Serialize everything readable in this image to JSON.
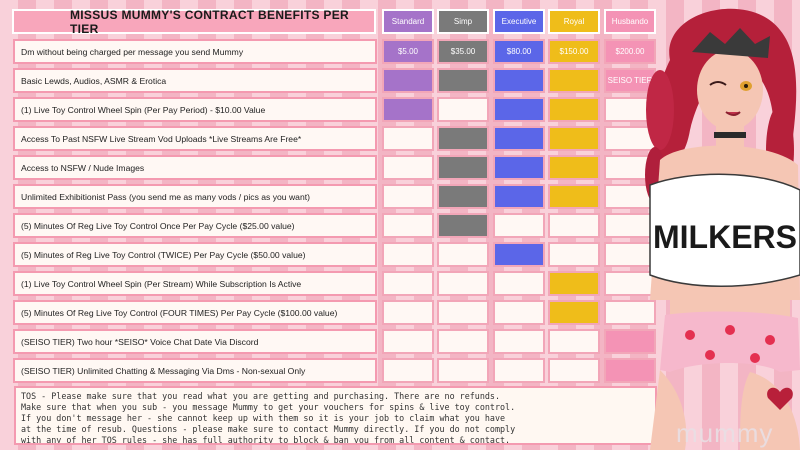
{
  "title": "Missus Mummy's Contract Benefits Per Tier",
  "tiers": [
    {
      "name": "Standard",
      "color": "#a573c9"
    },
    {
      "name": "Simp",
      "color": "#7a7a7a"
    },
    {
      "name": "Executive",
      "color": "#5b66e8"
    },
    {
      "name": "Royal",
      "color": "#efbd1a"
    },
    {
      "name": "Husbando",
      "color": "#f493b5"
    }
  ],
  "colors": {
    "empty_cell": "#fff8f4",
    "label_background": "#fff8f4",
    "border": "#f49ab0",
    "header": "#f8a6bb"
  },
  "rows": [
    {
      "label": "Dm without being charged per message you send Mummy",
      "cells": [
        "$5.00",
        "$35.00",
        "$80.00",
        "$150.00",
        "$200.00"
      ],
      "filled": [
        true,
        true,
        true,
        true,
        true
      ]
    },
    {
      "label": "Basic Lewds, Audios, ASMR & Erotica",
      "cells": [
        "",
        "",
        "",
        "",
        "SEISO TIER"
      ],
      "filled": [
        true,
        true,
        true,
        true,
        true
      ]
    },
    {
      "label": "(1) Live Toy Control Wheel Spin (Per Pay Period) -  $10.00 Value",
      "cells": [
        "",
        "",
        "",
        "",
        ""
      ],
      "filled": [
        true,
        false,
        true,
        true,
        false
      ]
    },
    {
      "label": "Access To Past NSFW Live Stream Vod Uploads *Live Streams Are Free*",
      "cells": [
        "",
        "",
        "",
        "",
        ""
      ],
      "filled": [
        false,
        true,
        true,
        true,
        false
      ]
    },
    {
      "label": "Access to NSFW / Nude Images",
      "cells": [
        "",
        "",
        "",
        "",
        ""
      ],
      "filled": [
        false,
        true,
        true,
        true,
        false
      ]
    },
    {
      "label": "Unlimited Exhibitionist Pass (you send me as many vods / pics as you want)",
      "cells": [
        "",
        "",
        "",
        "",
        ""
      ],
      "filled": [
        false,
        true,
        true,
        true,
        false
      ]
    },
    {
      "label": "(5) Minutes Of Reg Live Toy Control Once Per Pay Cycle ($25.00 value)",
      "cells": [
        "",
        "",
        "",
        "",
        ""
      ],
      "filled": [
        false,
        true,
        false,
        false,
        false
      ]
    },
    {
      "label": "(5) Minutes of Reg Live Toy Control (TWICE) Per Pay Cycle ($50.00 value)",
      "cells": [
        "",
        "",
        "",
        "",
        ""
      ],
      "filled": [
        false,
        false,
        true,
        false,
        false
      ]
    },
    {
      "label": "(1) Live Toy Control Wheel Spin (Per Stream) While Subscription Is Active",
      "cells": [
        "",
        "",
        "",
        "",
        ""
      ],
      "filled": [
        false,
        false,
        false,
        true,
        false
      ]
    },
    {
      "label": "(5) Minutes Of Reg Live Toy Control (FOUR TIMES) Per Pay Cycle ($100.00 value)",
      "cells": [
        "",
        "",
        "",
        "",
        ""
      ],
      "filled": [
        false,
        false,
        false,
        true,
        false
      ]
    },
    {
      "label": "(SEISO TIER) Two hour *SEISO* Voice Chat Date Via Discord",
      "cells": [
        "",
        "",
        "",
        "",
        ""
      ],
      "filled": [
        false,
        false,
        false,
        false,
        true
      ]
    },
    {
      "label": "(SEISO TIER) Unlimited Chatting & Messaging Via Dms - Non-sexual Only",
      "cells": [
        "",
        "",
        "",
        "",
        ""
      ],
      "filled": [
        false,
        false,
        false,
        false,
        true
      ]
    }
  ],
  "tos_lines": [
    "TOS - Please make sure that you read what you are getting and purchasing. There are no refunds.",
    "Make sure that when you sub - you message Mummy to get your vouchers for spins & live toy control.",
    "If you don't message her - she cannot keep up with them so it is your job to claim what you have",
    "at the time of resub. Questions - please make sure to contact Mummy directly. If you do not comply",
    "with any of her TOS rules - she has full authority to block & ban you from all content & contact."
  ],
  "character_shirt_text": "MILKERS",
  "watermark": "mummy"
}
